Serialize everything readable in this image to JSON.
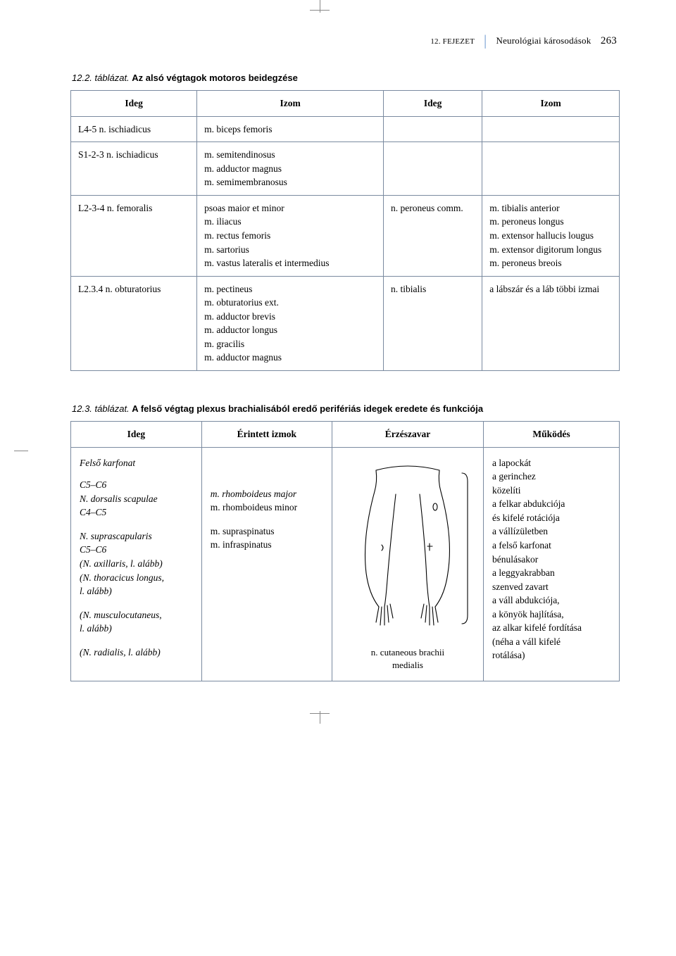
{
  "header": {
    "chapter": "12. FEJEZET",
    "title": "Neurológiai károsodások",
    "page": "263"
  },
  "table2": {
    "caption_num": "12.2. táblázat.",
    "caption_text": "Az alsó végtagok motoros beidegzése",
    "headers": [
      "Ideg",
      "Izom",
      "Ideg",
      "Izom"
    ],
    "rows": [
      {
        "c1": "L4-5 n. ischiadicus",
        "c2": "m. biceps femoris",
        "c3": "",
        "c4": ""
      },
      {
        "c1": "S1-2-3 n. ischiadicus",
        "c2": "m. semitendinosus\nm. adductor magnus\nm. semimembranosus",
        "c3": "",
        "c4": ""
      },
      {
        "c1": "L2-3-4 n. femoralis",
        "c2": "psoas maior et minor\nm. iliacus\nm. rectus femoris\nm. sartorius\nm. vastus lateralis et intermedius",
        "c3": "n. peroneus comm.",
        "c4": "m. tibialis anterior\nm. peroneus longus\nm. extensor hallucis lougus\nm. extensor digitorum longus\nm. peroneus breois"
      },
      {
        "c1": "L2.3.4 n. obturatorius",
        "c2": "m. pectineus\nm. obturatorius ext.\nm. adductor brevis\nm. adductor longus\nm. gracilis\nm. adductor magnus",
        "c3": "n. tibialis",
        "c4": "a lábszár és a láb többi izmai"
      }
    ],
    "col_widths": [
      "23%",
      "34%",
      "18%",
      "25%"
    ]
  },
  "table3": {
    "caption_num": "12.3. táblázat.",
    "caption_text": "A felső végtag plexus brachialisából eredő perifériás idegek eredete és funkciója",
    "headers": [
      "Ideg",
      "Érintett izmok",
      "Érzészavar",
      "Működés"
    ],
    "nerve_lines": [
      {
        "t": "Felső karfonat",
        "i": true,
        "gap": 12
      },
      {
        "t": "C5–C6",
        "i": true
      },
      {
        "t": "N. dorsalis scapulae",
        "i": true
      },
      {
        "t": "C4–C5",
        "i": true,
        "gap": 14
      },
      {
        "t": "N. suprascapularis",
        "i": true
      },
      {
        "t": "C5–C6",
        "i": true
      },
      {
        "t": "(N. axillaris, l. alább)",
        "i": true
      },
      {
        "t": "(N. thoracicus longus,",
        "i": true
      },
      {
        "t": "l. alább)",
        "i": true,
        "gap": 14
      },
      {
        "t": "(N. musculocutaneus,",
        "i": true
      },
      {
        "t": "l. alább)",
        "i": true,
        "gap": 14
      },
      {
        "t": "(N. radialis, l. alább)",
        "i": true
      }
    ],
    "muscle_lines": [
      {
        "t": "",
        "gap": 44
      },
      {
        "t": "m. rhomboideus major",
        "i": true
      },
      {
        "t": "m. rhomboideus minor",
        "i": false,
        "gap": 14
      },
      {
        "t": "m. supraspinatus",
        "i": false
      },
      {
        "t": "m. infraspinatus",
        "i": false
      }
    ],
    "figure_label": "n. cutaneous brachii\nmedialis",
    "func_lines": [
      "a lapockát",
      "a gerinchez",
      "közelíti",
      "",
      "a felkar abdukciója",
      "és kifelé rotációja",
      "a vállízületben",
      "",
      "a felső karfonat",
      "bénulásakor",
      "a leggyakrabban",
      "szenved zavart",
      "",
      "a váll abdukciója,",
      "a könyök hajlítása,",
      "az alkar kifelé fordítása",
      "(néha a váll kifelé",
      "rotálása)"
    ],
    "col_widths": [
      "24%",
      "24%",
      "27%",
      "25%"
    ],
    "fig_stroke": "#000000",
    "fig_stroke_width": 1.1
  },
  "colors": {
    "border": "#7a8aa0",
    "header_sep": "#7aa3d4"
  }
}
